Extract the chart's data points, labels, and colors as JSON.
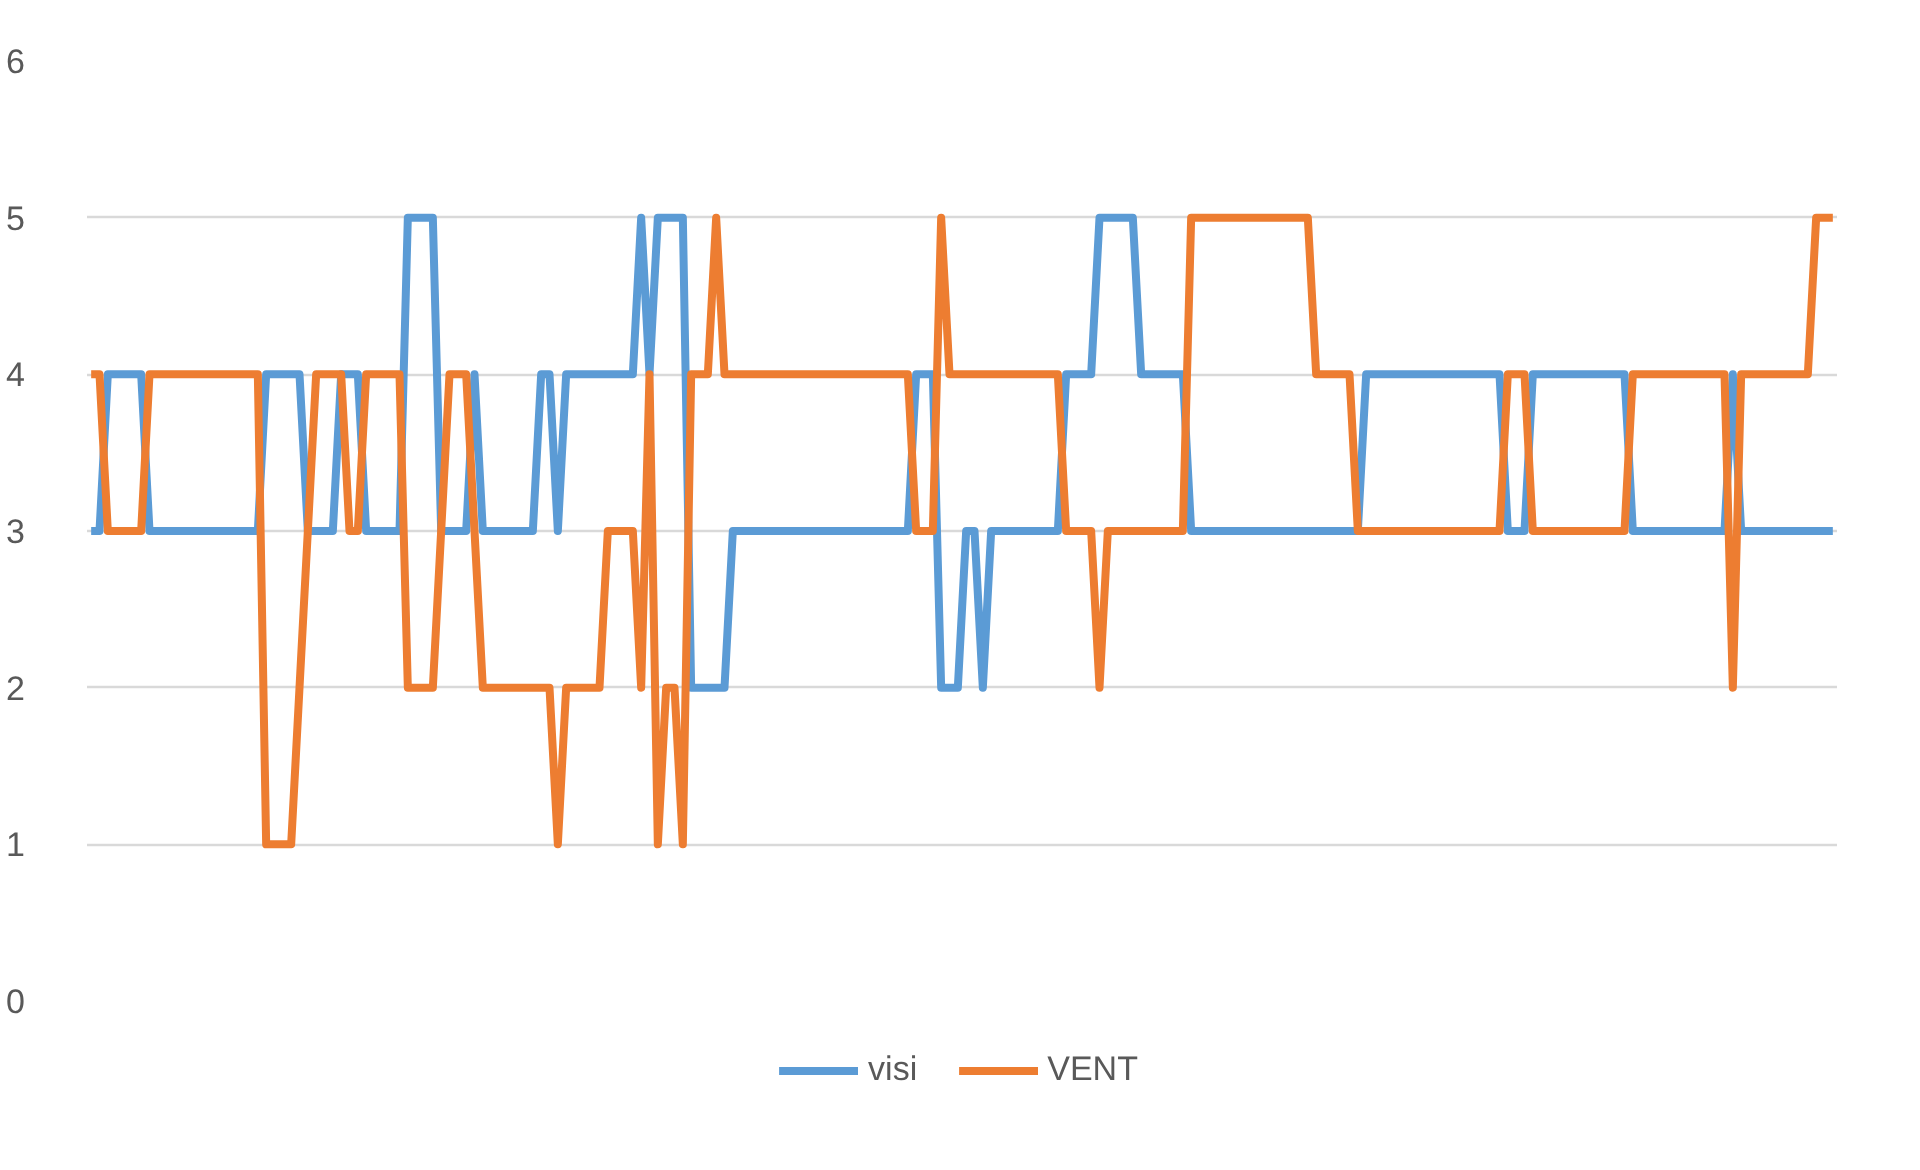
{
  "chart_data": {
    "type": "line",
    "ylim": [
      0,
      6
    ],
    "yticks": [
      0,
      1,
      2,
      3,
      4,
      5,
      6
    ],
    "grid": "y",
    "legend": "bottom",
    "marker": "none",
    "line_style": "solid",
    "categories": [
      null,
      null,
      null,
      null,
      null,
      null,
      null,
      null,
      null,
      null,
      null,
      null,
      null,
      null,
      null,
      null,
      null,
      null,
      null,
      null,
      null,
      null,
      null,
      null,
      null,
      null,
      null,
      null,
      null,
      null,
      null,
      null,
      null,
      null,
      null,
      null,
      null,
      null,
      null,
      null,
      null,
      null,
      null,
      null,
      null,
      null,
      null,
      null,
      null,
      null,
      null,
      null,
      null,
      null,
      null,
      null,
      null,
      null,
      null,
      null,
      null,
      null,
      null,
      null,
      null,
      null,
      null,
      null,
      null,
      null,
      null,
      null,
      null,
      null,
      null,
      null,
      null,
      null,
      null,
      null,
      null,
      null,
      null,
      null,
      null,
      null,
      null,
      null,
      null,
      null,
      null,
      null,
      null,
      null,
      null,
      null,
      null,
      null,
      null,
      null,
      null,
      null,
      null,
      null,
      null,
      null,
      null,
      null,
      null,
      null,
      null,
      null,
      null,
      null,
      null,
      null,
      null,
      null,
      null,
      null,
      null,
      null,
      null,
      null,
      null,
      null,
      null,
      null,
      null,
      null,
      null,
      null,
      null,
      null,
      null,
      null,
      null,
      null,
      null,
      null,
      null,
      null,
      null,
      null,
      null,
      null,
      null,
      null,
      null,
      null,
      null,
      null,
      null,
      null,
      null,
      null,
      null,
      null,
      null,
      null,
      null,
      null,
      null,
      null,
      null,
      null,
      null,
      null,
      null,
      null,
      null,
      null,
      null,
      null,
      null,
      null,
      null,
      null,
      null,
      null,
      null,
      null,
      null,
      null,
      null,
      null,
      null,
      null,
      null,
      null,
      null,
      null,
      null,
      null,
      null,
      null,
      null,
      null,
      null,
      null,
      null,
      null,
      null,
      null,
      null,
      null,
      null,
      null,
      null,
      null
    ],
    "series": [
      {
        "name": "visi",
        "color": "#5b9bd5",
        "values": [
          3,
          3,
          4,
          4,
          4,
          4,
          4,
          3,
          3,
          3,
          3,
          3,
          3,
          3,
          3,
          3,
          3,
          3,
          3,
          3,
          3,
          4,
          4,
          4,
          4,
          4,
          3,
          3,
          3,
          3,
          4,
          4,
          4,
          3,
          3,
          3,
          3,
          3,
          5,
          5,
          5,
          5,
          3,
          3,
          3,
          3,
          4,
          3,
          3,
          3,
          3,
          3,
          3,
          3,
          4,
          4,
          3,
          4,
          4,
          4,
          4,
          4,
          4,
          4,
          4,
          4,
          5,
          4,
          5,
          5,
          5,
          5,
          2,
          2,
          2,
          2,
          2,
          3,
          3,
          3,
          3,
          3,
          3,
          3,
          3,
          3,
          3,
          3,
          3,
          3,
          3,
          3,
          3,
          3,
          3,
          3,
          3,
          3,
          3,
          4,
          4,
          4,
          2,
          2,
          2,
          3,
          3,
          2,
          3,
          3,
          3,
          3,
          3,
          3,
          3,
          3,
          3,
          4,
          4,
          4,
          4,
          5,
          5,
          5,
          5,
          5,
          4,
          4,
          4,
          4,
          4,
          4,
          3,
          3,
          3,
          3,
          3,
          3,
          3,
          3,
          3,
          3,
          3,
          3,
          3,
          3,
          3,
          3,
          3,
          3,
          3,
          3,
          3,
          4,
          4,
          4,
          4,
          4,
          4,
          4,
          4,
          4,
          4,
          4,
          4,
          4,
          4,
          4,
          4,
          4,
          3,
          3,
          3,
          4,
          4,
          4,
          4,
          4,
          4,
          4,
          4,
          4,
          4,
          4,
          4,
          3,
          3,
          3,
          3,
          3,
          3,
          3,
          3,
          3,
          3,
          3,
          3,
          4,
          3,
          3,
          3,
          3,
          3,
          3,
          3,
          3,
          3,
          3,
          3,
          3
        ]
      },
      {
        "name": "VENT",
        "color": "#ed7d31",
        "values": [
          4,
          4,
          3,
          3,
          3,
          3,
          3,
          4,
          4,
          4,
          4,
          4,
          4,
          4,
          4,
          4,
          4,
          4,
          4,
          4,
          4,
          1,
          1,
          1,
          1,
          2,
          3,
          4,
          4,
          4,
          4,
          3,
          3,
          4,
          4,
          4,
          4,
          4,
          2,
          2,
          2,
          2,
          3,
          4,
          4,
          4,
          3,
          2,
          2,
          2,
          2,
          2,
          2,
          2,
          2,
          2,
          1,
          2,
          2,
          2,
          2,
          2,
          3,
          3,
          3,
          3,
          2,
          4,
          1,
          2,
          2,
          1,
          4,
          4,
          4,
          5,
          4,
          4,
          4,
          4,
          4,
          4,
          4,
          4,
          4,
          4,
          4,
          4,
          4,
          4,
          4,
          4,
          4,
          4,
          4,
          4,
          4,
          4,
          4,
          3,
          3,
          3,
          5,
          4,
          4,
          4,
          4,
          4,
          4,
          4,
          4,
          4,
          4,
          4,
          4,
          4,
          4,
          3,
          3,
          3,
          3,
          2,
          3,
          3,
          3,
          3,
          3,
          3,
          3,
          3,
          3,
          3,
          5,
          5,
          5,
          5,
          5,
          5,
          5,
          5,
          5,
          5,
          5,
          5,
          5,
          5,
          5,
          4,
          4,
          4,
          4,
          4,
          3,
          3,
          3,
          3,
          3,
          3,
          3,
          3,
          3,
          3,
          3,
          3,
          3,
          3,
          3,
          3,
          3,
          3,
          4,
          4,
          4,
          3,
          3,
          3,
          3,
          3,
          3,
          3,
          3,
          3,
          3,
          3,
          3,
          4,
          4,
          4,
          4,
          4,
          4,
          4,
          4,
          4,
          4,
          4,
          4,
          2,
          4,
          4,
          4,
          4,
          4,
          4,
          4,
          4,
          4,
          5,
          5,
          5
        ]
      }
    ]
  }
}
